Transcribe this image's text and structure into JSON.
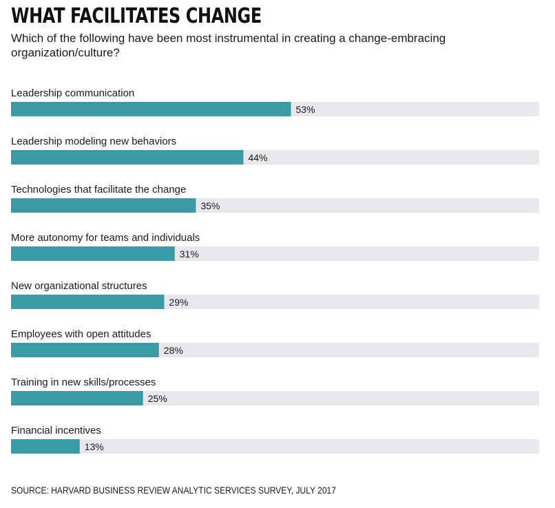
{
  "title": "WHAT FACILITATES CHANGE",
  "subtitle": "Which of the following have been most instrumental in creating a change-embracing organization/culture?",
  "source": "SOURCE: HARVARD BUSINESS REVIEW ANALYTIC SERVICES SURVEY, JULY 2017",
  "colors": {
    "bar": "#3a9aa5",
    "track": "#e6e8ec",
    "text": "#1a1a1a"
  },
  "chart_data": {
    "type": "bar",
    "orientation": "horizontal",
    "categories": [
      "Leadership communication",
      "Leadership modeling new behaviors",
      "Technologies that facilitate the change",
      "More autonomy for teams and individuals",
      "New organizational structures",
      "Employees with  open attitudes",
      "Training in new skills/processes",
      "Financial incentives"
    ],
    "values": [
      53,
      44,
      35,
      31,
      29,
      28,
      25,
      13
    ],
    "value_labels": [
      "53%",
      "44%",
      "35%",
      "31%",
      "29%",
      "28%",
      "25%",
      "13%"
    ],
    "xlim": [
      0,
      100
    ],
    "unit": "%",
    "grid": false,
    "legend": "none"
  }
}
